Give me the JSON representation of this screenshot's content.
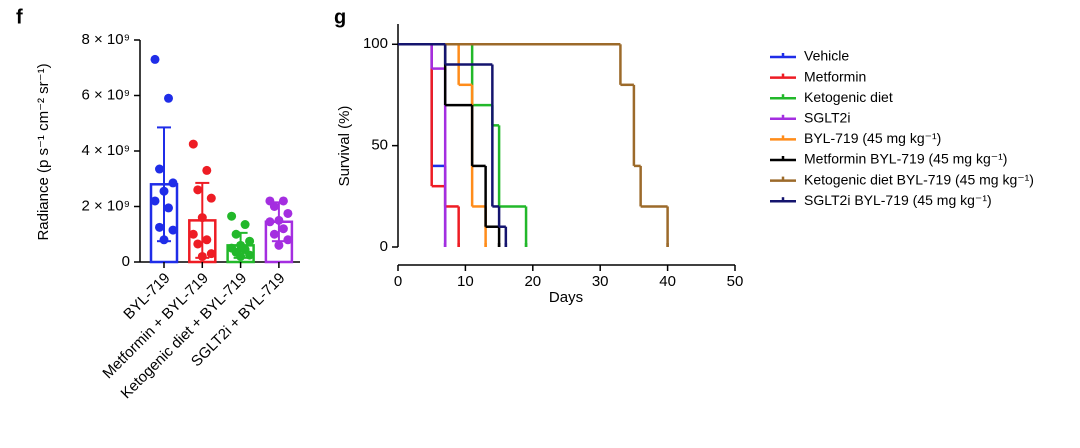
{
  "chart_data": [
    {
      "type": "bar",
      "panel": "f",
      "y_label": "Radiance (p s⁻¹ cm⁻² sr⁻¹)",
      "categories": [
        "BYL-719",
        "Metformin + BYL-719",
        "Ketogenic diet + BYL-719",
        "SGLT2i + BYL-719"
      ],
      "values": [
        2800000000,
        1500000000,
        600000000,
        1450000000
      ],
      "errors": [
        2050000000,
        1350000000,
        450000000,
        700000000
      ],
      "points": [
        [
          7300000000,
          5900000000,
          3350000000,
          2850000000,
          2550000000,
          2200000000,
          1950000000,
          1250000000,
          1150000000,
          800000000
        ],
        [
          4250000000,
          3300000000,
          2600000000,
          2300000000,
          1600000000,
          1000000000,
          800000000,
          650000000,
          300000000,
          200000000
        ],
        [
          1650000000,
          1350000000,
          1000000000,
          750000000,
          600000000,
          500000000,
          450000000,
          350000000,
          250000000,
          200000000
        ],
        [
          2200000000,
          2200000000,
          2000000000,
          1750000000,
          1500000000,
          1450000000,
          1200000000,
          1000000000,
          800000000,
          600000000
        ]
      ],
      "colors": [
        "#1f2de8",
        "#ee1c24",
        "#22b82a",
        "#a42ee0"
      ],
      "ylim": [
        0,
        8000000000
      ],
      "yticks": [
        0,
        {
          "value": 2000000000,
          "label": "2 × 10⁹"
        },
        {
          "value": 4000000000,
          "label": "4 × 10⁹"
        },
        {
          "value": 6000000000,
          "label": "6 × 10⁹"
        },
        {
          "value": 8000000000,
          "label": "8 × 10⁹"
        }
      ]
    },
    {
      "type": "step",
      "panel": "g",
      "x_label": "Days",
      "y_label": "Survival (%)",
      "xlim": [
        0,
        50
      ],
      "xticks": [
        0,
        10,
        20,
        30,
        40,
        50
      ],
      "ylim": [
        0,
        110
      ],
      "yticks": [
        0,
        50,
        100
      ],
      "legend": "right",
      "series": [
        {
          "name": "Vehicle",
          "color": "#1f2de8",
          "x": [
            0,
            5,
            7
          ],
          "y": [
            100,
            40,
            0
          ]
        },
        {
          "name": "Metformin",
          "color": "#ee1c24",
          "x": [
            0,
            5,
            7,
            9
          ],
          "y": [
            100,
            30,
            20,
            0
          ]
        },
        {
          "name": "Ketogenic diet",
          "color": "#22b82a",
          "x": [
            0,
            11,
            14,
            15,
            19
          ],
          "y": [
            100,
            70,
            60,
            20,
            0
          ]
        },
        {
          "name": "SGLT2i",
          "color": "#a42ee0",
          "x": [
            0,
            5,
            7
          ],
          "y": [
            100,
            88,
            0
          ]
        },
        {
          "name": "BYL-719 (45 mg kg⁻¹)",
          "color": "#ff8c1a",
          "x": [
            0,
            9,
            11,
            13
          ],
          "y": [
            100,
            80,
            20,
            0
          ]
        },
        {
          "name": "Metformin BYL-719 (45 mg kg⁻¹)",
          "color": "#000000",
          "x": [
            0,
            7,
            11,
            13,
            15
          ],
          "y": [
            100,
            70,
            40,
            10,
            0
          ]
        },
        {
          "name": "Ketogenic diet BYL-719 (45 mg kg⁻¹)",
          "color": "#9c6a2a",
          "x": [
            0,
            33,
            35,
            36,
            40
          ],
          "y": [
            100,
            80,
            40,
            20,
            0
          ]
        },
        {
          "name": "SGLT2i BYL-719 (45 mg kg⁻¹)",
          "color": "#14146e",
          "x": [
            0,
            7,
            14,
            15,
            16
          ],
          "y": [
            100,
            90,
            20,
            10,
            0
          ]
        }
      ]
    }
  ]
}
